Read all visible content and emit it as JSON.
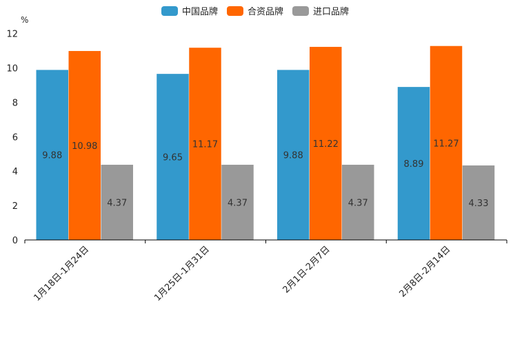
{
  "chart_data": {
    "type": "bar",
    "unit_label": "%",
    "categories": [
      "1月18日-1月24日",
      "1月25日-1月31日",
      "2月1日-2月7日",
      "2月8日-2月14日"
    ],
    "series": [
      {
        "name": "中国品牌",
        "color": "#3399CC",
        "values": [
          9.88,
          9.65,
          9.88,
          8.89
        ],
        "labels": [
          "9.88",
          "9.65",
          "9.88",
          "8.89"
        ]
      },
      {
        "name": "合资品牌",
        "color": "#FF6600",
        "values": [
          10.98,
          11.17,
          11.22,
          11.27
        ],
        "labels": [
          "10.98",
          "11.17",
          "11.22",
          "11.27"
        ]
      },
      {
        "name": "进口品牌",
        "color": "#999999",
        "values": [
          4.37,
          4.37,
          4.37,
          4.33
        ],
        "labels": [
          "4.37",
          "4.37",
          "4.37",
          "4.33"
        ]
      }
    ],
    "ylim": [
      0,
      12
    ],
    "yticks": [
      0,
      2,
      4,
      6,
      8,
      10,
      12
    ],
    "legend_position": "top-center",
    "grid": false
  }
}
